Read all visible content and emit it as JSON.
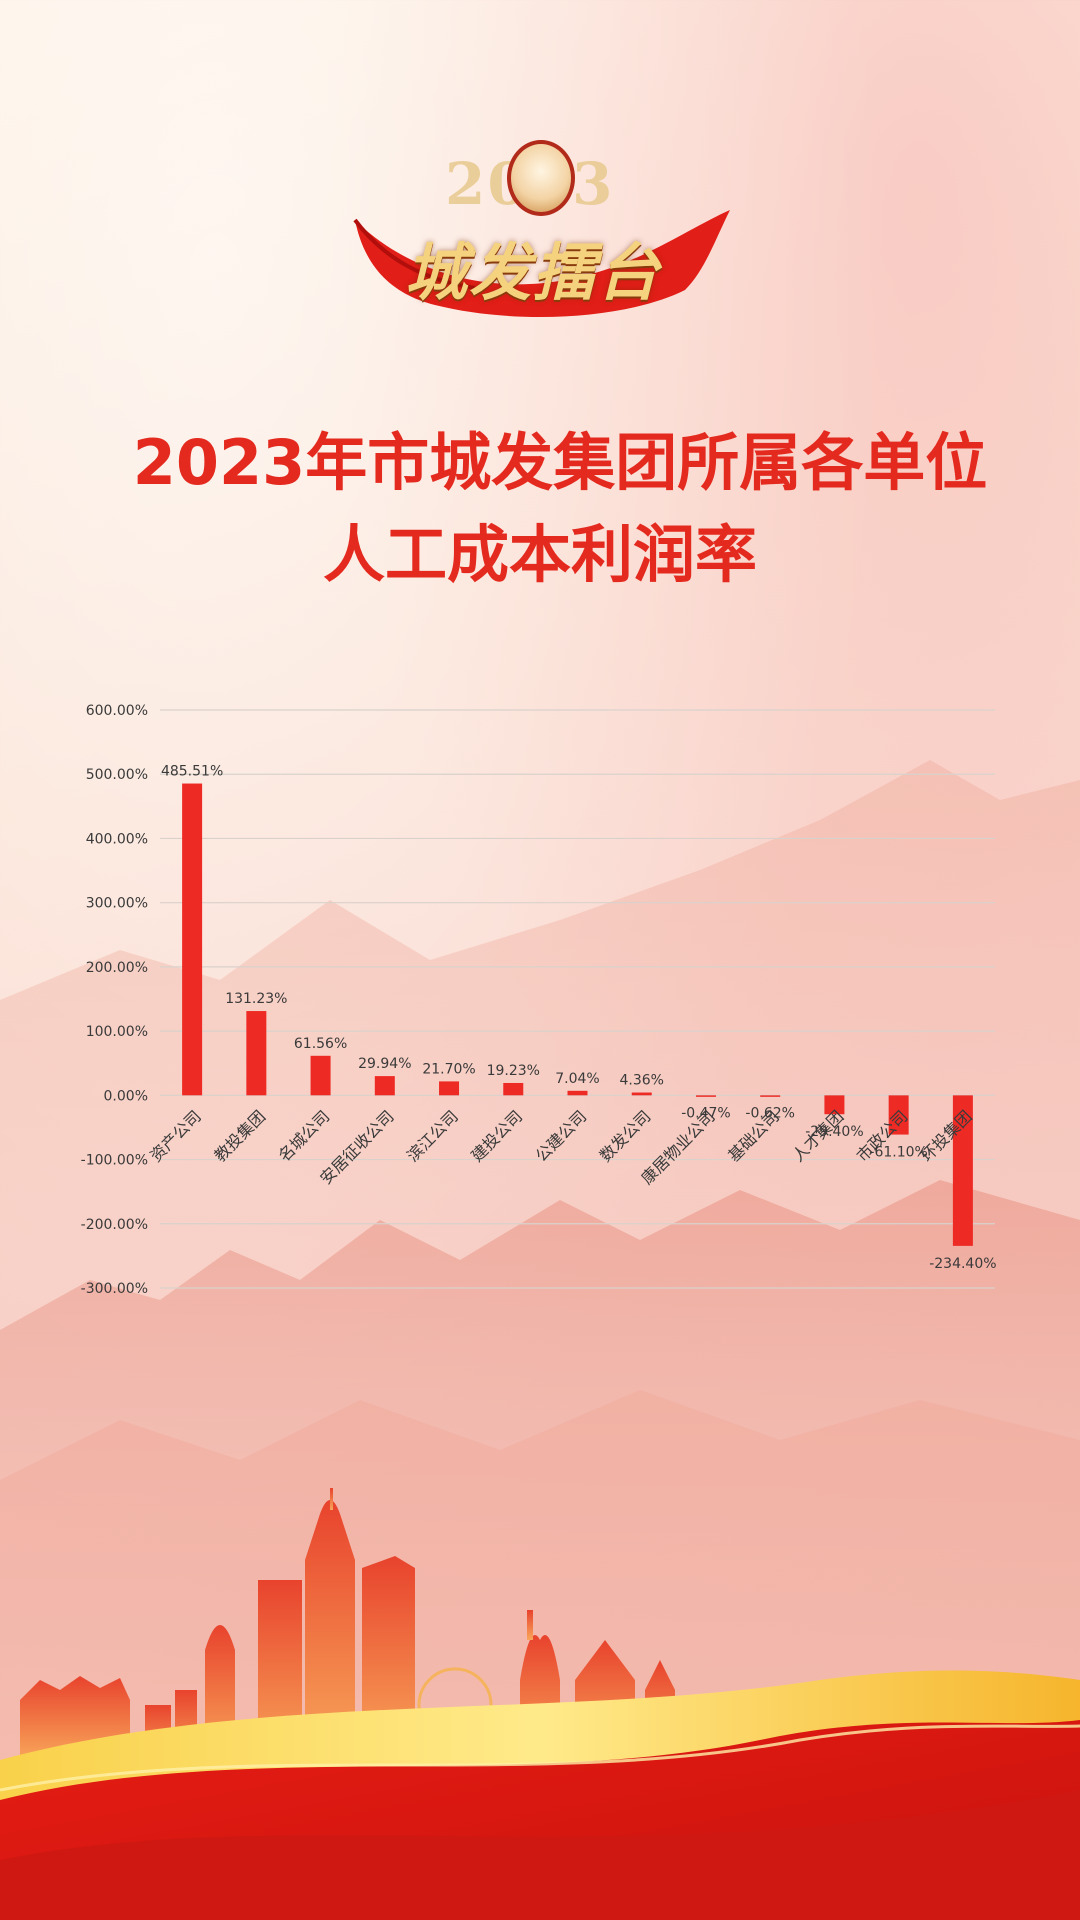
{
  "logo": {
    "year": "2023",
    "text": "城发擂台"
  },
  "header": {
    "title_line1": "2023年市城发集团所属各单位",
    "title_line2": "人工成本利润率"
  },
  "colors": {
    "title": "#e42a1f",
    "bar": "#ee2a24",
    "grid": "#d9d2cc"
  },
  "chart_data": {
    "type": "bar",
    "title": "",
    "xlabel": "",
    "ylabel": "",
    "categories": [
      "资产公司",
      "教投集团",
      "名城公司",
      "安居征收公司",
      "滨江公司",
      "建投公司",
      "公建公司",
      "数发公司",
      "康居物业公司",
      "基础公司",
      "人才集团",
      "市政公司",
      "环投集团"
    ],
    "values": [
      485.51,
      131.23,
      61.56,
      29.94,
      21.7,
      19.23,
      7.04,
      4.36,
      -0.47,
      -0.62,
      -29.4,
      -61.1,
      -234.4
    ],
    "value_labels": [
      "485.51%",
      "131.23%",
      "61.56%",
      "29.94%",
      "21.70%",
      "19.23%",
      "7.04%",
      "4.36%",
      "-0.47%",
      "-0.62%",
      "-29.40%",
      "-61.10%",
      "-234.40%"
    ],
    "ylim": [
      -300,
      600
    ],
    "yticks": [
      600,
      500,
      400,
      300,
      200,
      100,
      0,
      -100,
      -200,
      -300
    ],
    "ytick_labels": [
      "600.00%",
      "500.00%",
      "400.00%",
      "300.00%",
      "200.00%",
      "100.00%",
      "0.00%",
      "-100.00%",
      "-200.00%",
      "-300.00%"
    ],
    "grid": true,
    "legend": "none"
  }
}
